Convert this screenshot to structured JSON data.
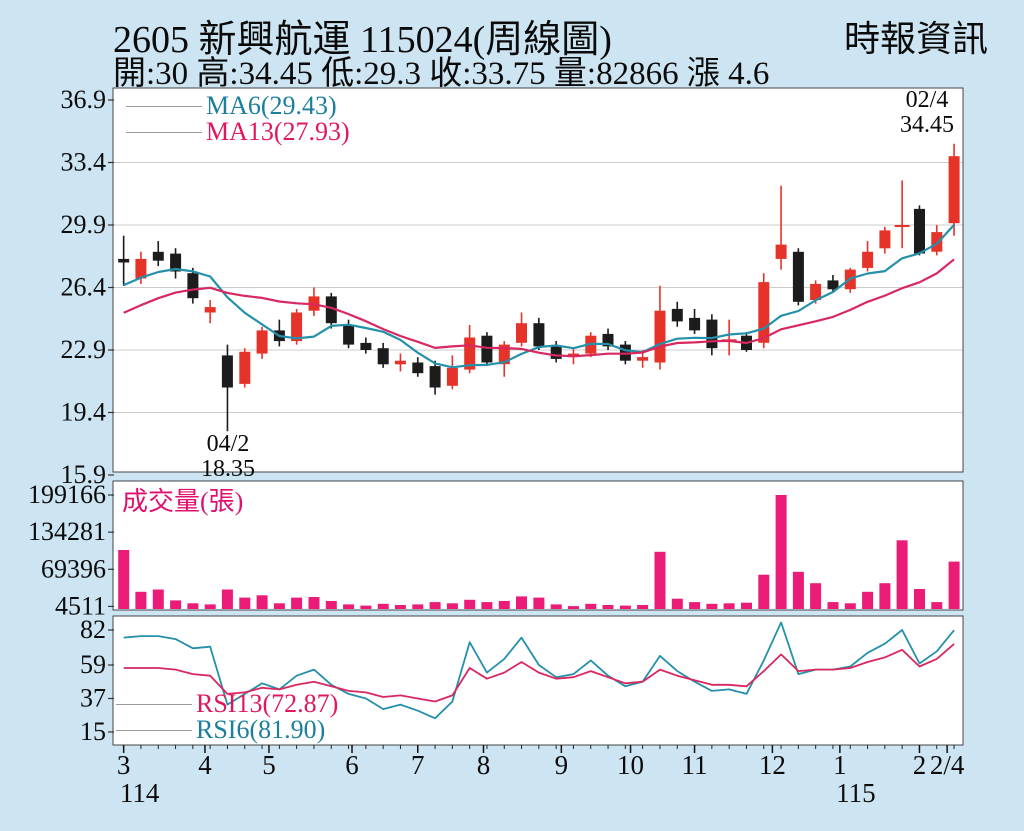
{
  "header": {
    "title": "2605  新興航運 115024(周線圖)",
    "source": "時報資訊",
    "quote": "開:30 高:34.45 低:29.3 收:33.75 量:82866 漲 4.6"
  },
  "legends": {
    "ma6": "MA6(29.43)",
    "ma13": "MA13(27.93)",
    "volume": "成交量(張)",
    "rsi13": "RSI13(72.87)",
    "rsi6": "RSI6(81.90)"
  },
  "annotations": {
    "high": {
      "date": "02/4",
      "value": "34.45"
    },
    "low": {
      "date": "04/2",
      "value": "18.35"
    }
  },
  "axis": {
    "months": [
      {
        "label": "3",
        "i": 0,
        "year": "114"
      },
      {
        "label": "4",
        "i": 4.7
      },
      {
        "label": "5",
        "i": 8.4
      },
      {
        "label": "6",
        "i": 13.2
      },
      {
        "label": "7",
        "i": 17.0
      },
      {
        "label": "8",
        "i": 20.8
      },
      {
        "label": "9",
        "i": 25.3
      },
      {
        "label": "10",
        "i": 29.3
      },
      {
        "label": "11",
        "i": 33.0
      },
      {
        "label": "12",
        "i": 37.5
      },
      {
        "label": "1",
        "i": 41.4,
        "year": "115"
      },
      {
        "label": "2",
        "i": 46.0
      },
      {
        "label": "2/4",
        "i": 47.6
      }
    ]
  },
  "colors": {
    "background": "#cde5f2",
    "panel": "#ffffff",
    "border": "#444444",
    "grid": "#cccccc",
    "up": "#e63329",
    "down": "#1c1c1c",
    "teal": "#2490a9",
    "pink": "#d8285f",
    "magenta": "#ea1c78"
  },
  "chart_data": [
    {
      "name": "price",
      "type": "candlestick",
      "title": "2605 新興航運 weekly candles",
      "ylim": [
        15.9,
        36.9
      ],
      "y_ticks": [
        36.9,
        33.4,
        29.9,
        26.4,
        22.9,
        19.4,
        15.9
      ],
      "ma_series": [
        {
          "name": "MA6",
          "period": 6
        },
        {
          "name": "MA13",
          "period": 13
        }
      ],
      "ma_warmup_closes": [
        22.5,
        22.8,
        23.2,
        23.6,
        24.0,
        24.5,
        25.0,
        25.5,
        26.0,
        26.3,
        26.6,
        27.0
      ],
      "candles": [
        [
          28.0,
          29.3,
          26.5,
          27.8
        ],
        [
          26.9,
          28.4,
          26.6,
          28.0
        ],
        [
          28.4,
          29.0,
          27.6,
          27.9
        ],
        [
          28.3,
          28.6,
          26.9,
          27.3
        ],
        [
          27.2,
          27.5,
          25.5,
          25.8
        ],
        [
          25.0,
          25.7,
          24.4,
          25.3
        ],
        [
          22.6,
          23.2,
          18.35,
          20.8
        ],
        [
          21.0,
          23.0,
          20.8,
          22.8
        ],
        [
          22.7,
          24.2,
          22.4,
          24.0
        ],
        [
          24.0,
          24.6,
          23.1,
          23.4
        ],
        [
          23.4,
          25.2,
          23.2,
          25.0
        ],
        [
          25.1,
          26.4,
          24.8,
          25.9
        ],
        [
          25.9,
          26.1,
          24.1,
          24.4
        ],
        [
          24.3,
          24.6,
          23.0,
          23.2
        ],
        [
          23.3,
          23.6,
          22.7,
          22.9
        ],
        [
          23.0,
          23.3,
          21.9,
          22.1
        ],
        [
          22.1,
          22.7,
          21.7,
          22.3
        ],
        [
          22.2,
          22.5,
          21.4,
          21.6
        ],
        [
          22.0,
          22.3,
          20.4,
          20.8
        ],
        [
          20.9,
          22.6,
          20.7,
          21.9
        ],
        [
          21.8,
          24.3,
          21.6,
          23.6
        ],
        [
          23.7,
          23.9,
          22.0,
          22.2
        ],
        [
          22.1,
          23.4,
          21.4,
          23.2
        ],
        [
          23.3,
          25.0,
          23.1,
          24.4
        ],
        [
          24.4,
          24.7,
          22.9,
          23.1
        ],
        [
          23.1,
          23.4,
          22.2,
          22.4
        ],
        [
          22.5,
          23.0,
          22.1,
          22.7
        ],
        [
          22.7,
          23.9,
          22.5,
          23.7
        ],
        [
          23.8,
          24.1,
          22.9,
          23.1
        ],
        [
          23.2,
          23.4,
          22.1,
          22.3
        ],
        [
          22.3,
          22.9,
          21.9,
          22.5
        ],
        [
          22.2,
          26.5,
          21.8,
          25.1
        ],
        [
          25.2,
          25.6,
          24.2,
          24.5
        ],
        [
          24.7,
          25.2,
          23.8,
          24.0
        ],
        [
          24.6,
          24.9,
          22.6,
          23.0
        ],
        [
          23.4,
          24.6,
          22.6,
          23.5
        ],
        [
          23.7,
          23.9,
          22.8,
          22.9
        ],
        [
          23.3,
          27.2,
          23.0,
          26.7
        ],
        [
          28.0,
          32.1,
          27.4,
          28.8
        ],
        [
          28.4,
          28.6,
          25.4,
          25.6
        ],
        [
          25.7,
          26.8,
          25.5,
          26.6
        ],
        [
          26.8,
          27.1,
          26.1,
          26.3
        ],
        [
          26.3,
          27.5,
          26.1,
          27.4
        ],
        [
          27.5,
          29.0,
          27.3,
          28.4
        ],
        [
          28.6,
          29.8,
          28.3,
          29.6
        ],
        [
          29.9,
          32.4,
          28.6,
          29.9
        ],
        [
          30.8,
          31.0,
          28.2,
          28.3
        ],
        [
          28.4,
          29.9,
          28.2,
          29.5
        ],
        [
          30.0,
          34.45,
          29.3,
          33.75
        ]
      ]
    },
    {
      "name": "volume",
      "type": "bar",
      "title": "成交量(張)",
      "y_ticks": [
        199166,
        134281,
        69396,
        4511
      ],
      "values": [
        103000,
        30000,
        34000,
        15000,
        10000,
        8000,
        34000,
        20000,
        24000,
        10000,
        20000,
        21000,
        14000,
        8000,
        6000,
        9000,
        7000,
        8000,
        12000,
        10000,
        16000,
        12000,
        14000,
        22000,
        20000,
        8000,
        5000,
        9000,
        7000,
        6000,
        7000,
        100000,
        18000,
        12000,
        9000,
        10000,
        11000,
        60000,
        199166,
        65000,
        45000,
        12000,
        10000,
        30000,
        45000,
        120000,
        35000,
        12000,
        82866
      ]
    },
    {
      "name": "rsi",
      "type": "line",
      "y_ticks": [
        82,
        59,
        37,
        15
      ],
      "series": [
        {
          "name": "RSI13",
          "values": [
            57,
            57,
            57,
            56,
            53,
            52,
            40,
            41,
            44,
            43,
            46,
            48,
            45,
            42,
            41,
            38,
            39,
            37,
            35,
            39,
            57,
            50,
            54,
            61,
            54,
            50,
            51,
            55,
            51,
            47,
            48,
            56,
            52,
            49,
            46,
            46,
            45,
            55,
            66,
            55,
            56,
            56,
            57,
            61,
            64,
            69,
            58,
            63,
            72.87
          ]
        },
        {
          "name": "RSI6",
          "values": [
            77,
            78,
            78,
            76,
            70,
            71,
            33,
            40,
            47,
            43,
            52,
            56,
            46,
            40,
            37,
            30,
            33,
            29,
            24,
            35,
            74,
            54,
            63,
            77,
            59,
            51,
            53,
            62,
            52,
            45,
            48,
            65,
            55,
            48,
            42,
            43,
            40,
            62,
            87,
            53,
            56,
            56,
            58,
            67,
            73,
            82,
            60,
            68,
            81.9
          ]
        }
      ]
    }
  ]
}
